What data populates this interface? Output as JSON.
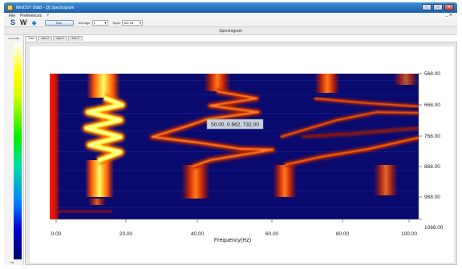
{
  "window": {
    "title": "MiniDSY Dt&B - [3] Spectrogram",
    "buttons": {
      "minimize": "–",
      "maximize": "□",
      "close": "✕"
    }
  },
  "menu": {
    "items": [
      "File",
      "Preferences",
      "?"
    ],
    "right_mark": "_ ✕"
  },
  "toolbar": {
    "s_label": "S",
    "w_label": "W",
    "run_label": "Run",
    "average_label": "Average",
    "average_value": "1",
    "span_label": "Span",
    "span_value": "100 Hz"
  },
  "panel_title": "Spectrogram",
  "sidebar": {
    "top_label": "Level (dB)",
    "bottom_label": "Min"
  },
  "tabs": [
    "Total",
    "Axis X",
    "Axis Y",
    "Axis Z"
  ],
  "tooltip": "50.00, 0.662, 732.00",
  "x_axis": {
    "label": "Frequency(Hz)",
    "ticks": [
      "0.00",
      "20.00",
      "40.00",
      "60.00",
      "80.00",
      "100.00"
    ]
  },
  "y_axis": {
    "ticks": [
      "568.00",
      "668.00",
      "768.00",
      "868.00",
      "968.00",
      "1068.00"
    ]
  },
  "colors": {
    "background": "#0a0a6e",
    "hot": "#ffff40",
    "warm": "#ff6a10",
    "accent": "#2f7ac8"
  }
}
